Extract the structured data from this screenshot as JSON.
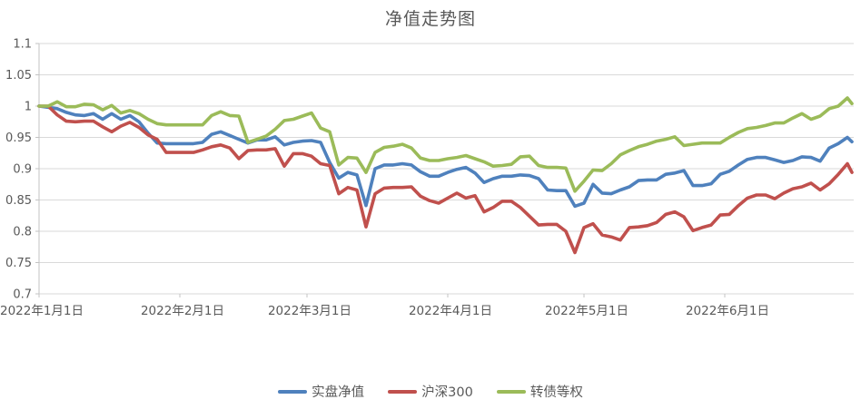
{
  "chart_data": {
    "type": "line",
    "title": "净值走势图",
    "xlabel": "",
    "ylabel": "",
    "ylim": [
      0.7,
      1.1
    ],
    "grid": "horizontal",
    "legend_position": "bottom",
    "text_color": "#595959",
    "grid_color": "#d9d9d9",
    "axis_color": "#c3c3c3",
    "y_ticks": {
      "values": [
        1.1,
        1.05,
        1.0,
        0.95,
        0.9,
        0.85,
        0.8,
        0.75,
        0.7
      ],
      "labels": [
        "1.1",
        "1.05",
        "1",
        "0.95",
        "0.9",
        "0.85",
        "0.8",
        "0.75",
        "0.7"
      ]
    },
    "x_ticks": [
      {
        "day": 0,
        "label": "2022年1月1日"
      },
      {
        "day": 31,
        "label": "2022年2月1日"
      },
      {
        "day": 59,
        "label": "2022年3月1日"
      },
      {
        "day": 90,
        "label": "2022年4月1日"
      },
      {
        "day": 120,
        "label": "2022年5月1日"
      },
      {
        "day": 151,
        "label": "2022年6月1日"
      }
    ],
    "x_days": [
      0,
      2,
      4,
      6,
      8,
      10,
      12,
      14,
      16,
      18,
      20,
      22,
      24,
      26,
      28,
      30,
      32,
      34,
      36,
      38,
      40,
      42,
      44,
      46,
      48,
      50,
      52,
      54,
      56,
      58,
      60,
      62,
      64,
      66,
      68,
      70,
      72,
      74,
      76,
      78,
      80,
      82,
      84,
      86,
      88,
      90,
      92,
      94,
      96,
      98,
      100,
      102,
      104,
      106,
      108,
      110,
      112,
      114,
      116,
      118,
      120,
      122,
      124,
      126,
      128,
      130,
      132,
      134,
      136,
      138,
      140,
      142,
      144,
      146,
      148,
      150,
      152,
      154,
      156,
      158,
      160,
      162,
      164,
      166,
      168,
      170,
      172,
      174,
      176,
      178,
      179
    ],
    "series": [
      {
        "name": "实盘净值",
        "color": "#4F81BD",
        "values": [
          1.0,
          0.998,
          0.996,
          0.99,
          0.986,
          0.985,
          0.988,
          0.979,
          0.988,
          0.979,
          0.985,
          0.975,
          0.957,
          0.941,
          0.94,
          0.94,
          0.94,
          0.94,
          0.942,
          0.955,
          0.959,
          0.953,
          0.947,
          0.941,
          0.946,
          0.946,
          0.951,
          0.938,
          0.942,
          0.944,
          0.945,
          0.942,
          0.91,
          0.885,
          0.894,
          0.89,
          0.841,
          0.9,
          0.906,
          0.906,
          0.908,
          0.906,
          0.895,
          0.888,
          0.888,
          0.894,
          0.899,
          0.902,
          0.893,
          0.878,
          0.884,
          0.888,
          0.888,
          0.89,
          0.889,
          0.884,
          0.866,
          0.865,
          0.865,
          0.84,
          0.845,
          0.875,
          0.861,
          0.86,
          0.866,
          0.871,
          0.881,
          0.882,
          0.882,
          0.891,
          0.893,
          0.897,
          0.873,
          0.873,
          0.876,
          0.891,
          0.896,
          0.906,
          0.915,
          0.918,
          0.918,
          0.914,
          0.91,
          0.913,
          0.919,
          0.918,
          0.912,
          0.933,
          0.94,
          0.95,
          0.943
        ]
      },
      {
        "name": "沪深300",
        "color": "#C0504D",
        "values": [
          1.0,
          1.0,
          0.986,
          0.976,
          0.975,
          0.976,
          0.976,
          0.967,
          0.959,
          0.968,
          0.974,
          0.966,
          0.954,
          0.947,
          0.926,
          0.926,
          0.926,
          0.926,
          0.93,
          0.935,
          0.938,
          0.933,
          0.916,
          0.929,
          0.93,
          0.93,
          0.932,
          0.904,
          0.924,
          0.924,
          0.92,
          0.908,
          0.905,
          0.86,
          0.87,
          0.866,
          0.807,
          0.86,
          0.869,
          0.87,
          0.87,
          0.871,
          0.856,
          0.849,
          0.845,
          0.853,
          0.861,
          0.853,
          0.857,
          0.831,
          0.838,
          0.848,
          0.848,
          0.838,
          0.824,
          0.81,
          0.811,
          0.811,
          0.8,
          0.766,
          0.806,
          0.812,
          0.794,
          0.791,
          0.786,
          0.806,
          0.807,
          0.809,
          0.814,
          0.827,
          0.831,
          0.823,
          0.801,
          0.806,
          0.81,
          0.826,
          0.827,
          0.841,
          0.853,
          0.858,
          0.858,
          0.852,
          0.861,
          0.868,
          0.871,
          0.877,
          0.866,
          0.876,
          0.891,
          0.908,
          0.894
        ]
      },
      {
        "name": "转债等权",
        "color": "#9BBB59",
        "values": [
          1.0,
          1.0,
          1.007,
          0.999,
          0.999,
          1.003,
          1.002,
          0.994,
          1.001,
          0.989,
          0.993,
          0.988,
          0.979,
          0.972,
          0.97,
          0.97,
          0.97,
          0.97,
          0.97,
          0.985,
          0.991,
          0.985,
          0.984,
          0.942,
          0.947,
          0.952,
          0.963,
          0.977,
          0.979,
          0.984,
          0.989,
          0.965,
          0.959,
          0.906,
          0.918,
          0.917,
          0.894,
          0.926,
          0.934,
          0.936,
          0.939,
          0.933,
          0.917,
          0.913,
          0.913,
          0.916,
          0.918,
          0.921,
          0.916,
          0.911,
          0.904,
          0.905,
          0.907,
          0.919,
          0.92,
          0.905,
          0.902,
          0.902,
          0.901,
          0.864,
          0.88,
          0.898,
          0.897,
          0.908,
          0.922,
          0.929,
          0.935,
          0.939,
          0.944,
          0.947,
          0.951,
          0.937,
          0.939,
          0.941,
          0.941,
          0.941,
          0.95,
          0.958,
          0.964,
          0.966,
          0.969,
          0.973,
          0.973,
          0.981,
          0.988,
          0.979,
          0.984,
          0.996,
          1.0,
          1.013,
          1.004
        ]
      }
    ]
  }
}
